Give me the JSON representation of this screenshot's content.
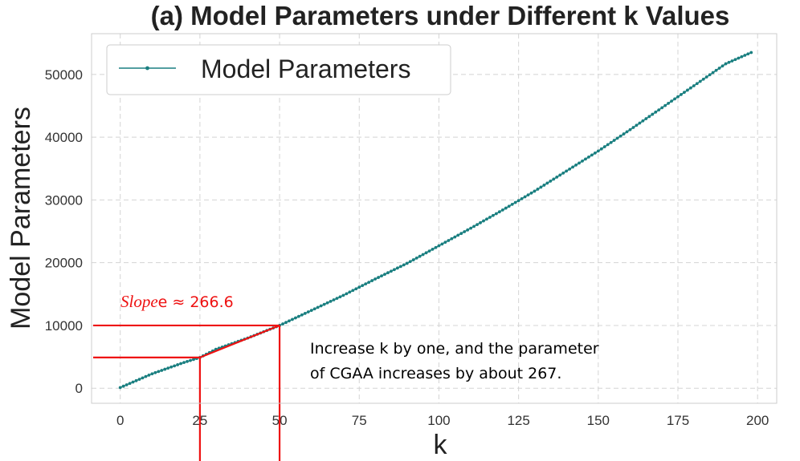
{
  "chart_data": {
    "type": "line",
    "title": "(a) Model Parameters under Different k Values",
    "xlabel": "k",
    "ylabel": "Model Parameters",
    "xlim": [
      -9,
      206
    ],
    "ylim": [
      -2400,
      56500
    ],
    "xticks": [
      0,
      25,
      50,
      75,
      100,
      125,
      150,
      175,
      200
    ],
    "yticks": [
      0,
      10000,
      20000,
      30000,
      40000,
      50000
    ],
    "grid": true,
    "legend": {
      "placement": "top-left",
      "entries": [
        "Model Parameters"
      ]
    },
    "series": [
      {
        "name": "Model Parameters",
        "color": "#1a7f80",
        "marker": "dot",
        "x": [
          0,
          10,
          20,
          25,
          30,
          40,
          50,
          60,
          70,
          80,
          90,
          100,
          110,
          120,
          130,
          140,
          150,
          160,
          170,
          180,
          190,
          198
        ],
        "y": [
          100,
          2300,
          4100,
          4900,
          6200,
          8000,
          10000,
          12400,
          14800,
          17400,
          19900,
          22700,
          25500,
          28400,
          31400,
          34600,
          37800,
          41200,
          44700,
          48200,
          51700,
          53500
        ]
      }
    ],
    "annotations": {
      "slope_label_italic": "Slope",
      "slope_label_rest": "e ≈ 266.6",
      "note_line1": "Increase k by one, and the parameter",
      "note_line2": "of CGAA increases by about 267.",
      "guide_color": "#ee1111",
      "guide_x": [
        25,
        50
      ],
      "guide_y": [
        4900,
        10000
      ],
      "segment_x": [
        25,
        50
      ]
    }
  }
}
